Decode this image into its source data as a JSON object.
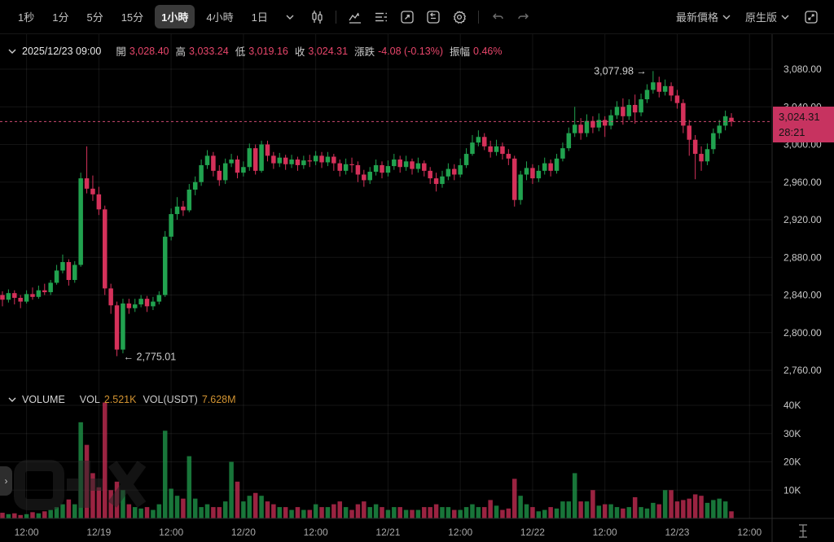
{
  "toolbar": {
    "timeframes": [
      {
        "label": "1秒",
        "active": false
      },
      {
        "label": "1分",
        "active": false
      },
      {
        "label": "5分",
        "active": false
      },
      {
        "label": "15分",
        "active": false
      },
      {
        "label": "1小時",
        "active": true
      },
      {
        "label": "4小時",
        "active": false
      },
      {
        "label": "1日",
        "active": false
      }
    ],
    "price_mode_label": "最新價格",
    "version_label": "原生版"
  },
  "ohlc_bar": {
    "timestamp": "2025/12/23 09:00",
    "open_label": "開",
    "open": "3,028.40",
    "high_label": "高",
    "high": "3,033.24",
    "low_label": "低",
    "low": "3,019.16",
    "close_label": "收",
    "close": "3,024.31",
    "change_label": "漲跌",
    "change": "-4.08 (-0.13%)",
    "amplitude_label": "振幅",
    "amplitude": "0.46%"
  },
  "volume_header": {
    "title": "VOLUME",
    "vol_label": "VOL",
    "vol": "2.521K",
    "vol_usdt_label": "VOL(USDT)",
    "vol_usdt": "7.628M"
  },
  "price_tag": {
    "price": "3,024.31",
    "countdown": "28:21"
  },
  "colors": {
    "up": "#21a24f",
    "down": "#d5315a",
    "badge": "#c73360",
    "dashed_line": "#cf4a72",
    "value_pink": "#e8466b",
    "amber": "#d29331",
    "grid": "rgba(255,255,255,0.08)",
    "axis_text": "#c9c9c9",
    "time_text": "#a8a8a8"
  },
  "chart_data": {
    "type": "candlestick+volume",
    "title": "",
    "price_axis": [
      {
        "label": "3,080.00",
        "v": 3080
      },
      {
        "label": "3,040.00",
        "v": 3040
      },
      {
        "label": "3,000.00",
        "v": 3000
      },
      {
        "label": "2,960.00",
        "v": 2960
      },
      {
        "label": "2,920.00",
        "v": 2920
      },
      {
        "label": "2,880.00",
        "v": 2880
      },
      {
        "label": "2,840.00",
        "v": 2840
      },
      {
        "label": "2,800.00",
        "v": 2800
      },
      {
        "label": "2,760.00",
        "v": 2760
      }
    ],
    "volume_axis": [
      {
        "label": "40K",
        "v": 40
      },
      {
        "label": "30K",
        "v": 30
      },
      {
        "label": "20K",
        "v": 20
      },
      {
        "label": "10K",
        "v": 10
      }
    ],
    "time_ticks": [
      {
        "label": "12:00",
        "i": 4
      },
      {
        "label": "12/19",
        "i": 16
      },
      {
        "label": "12:00",
        "i": 28
      },
      {
        "label": "12/20",
        "i": 40
      },
      {
        "label": "12:00",
        "i": 52
      },
      {
        "label": "12/21",
        "i": 64
      },
      {
        "label": "12:00",
        "i": 76
      },
      {
        "label": "12/22",
        "i": 88
      },
      {
        "label": "12:00",
        "i": 100
      },
      {
        "label": "12/23",
        "i": 112
      },
      {
        "label": "12:00",
        "i": 124
      }
    ],
    "last_price": 3024.31,
    "annotation_high": {
      "text": "3,077.98 →",
      "price": 3077.98,
      "index": 108
    },
    "annotation_low": {
      "text": "← 2,775.01",
      "price": 2775.01,
      "index": 19
    },
    "candles_format": [
      "open",
      "high",
      "low",
      "close",
      "volumeK"
    ],
    "candles": [
      [
        2840,
        2844,
        2828,
        2835,
        2.0
      ],
      [
        2835,
        2846,
        2832,
        2842,
        1.5
      ],
      [
        2842,
        2845,
        2830,
        2837,
        1.8
      ],
      [
        2837,
        2840,
        2826,
        2833,
        1.2
      ],
      [
        2833,
        2845,
        2831,
        2841,
        1.5
      ],
      [
        2841,
        2848,
        2835,
        2838,
        2.2
      ],
      [
        2838,
        2850,
        2836,
        2845,
        1.8
      ],
      [
        2845,
        2852,
        2840,
        2843,
        2.5
      ],
      [
        2843,
        2856,
        2840,
        2853,
        3.0
      ],
      [
        2853,
        2872,
        2851,
        2866,
        4.0
      ],
      [
        2866,
        2883,
        2863,
        2875,
        5.0
      ],
      [
        2875,
        2878,
        2850,
        2856,
        6.7
      ],
      [
        2856,
        2876,
        2853,
        2872,
        5.0
      ],
      [
        2872,
        2970,
        2870,
        2964,
        34
      ],
      [
        2964,
        2998,
        2948,
        2953,
        26
      ],
      [
        2953,
        2967,
        2940,
        2947,
        16
      ],
      [
        2947,
        2955,
        2925,
        2931,
        11
      ],
      [
        2931,
        2935,
        2840,
        2847,
        41
      ],
      [
        2847,
        2852,
        2820,
        2829,
        10
      ],
      [
        2829,
        2833,
        2775,
        2782,
        13
      ],
      [
        2782,
        2836,
        2778,
        2831,
        10
      ],
      [
        2831,
        2836,
        2820,
        2826,
        5
      ],
      [
        2826,
        2836,
        2822,
        2830,
        4
      ],
      [
        2830,
        2840,
        2827,
        2836,
        3.5
      ],
      [
        2836,
        2839,
        2822,
        2828,
        4
      ],
      [
        2828,
        2838,
        2824,
        2833,
        3
      ],
      [
        2833,
        2844,
        2830,
        2840,
        5
      ],
      [
        2840,
        2908,
        2838,
        2902,
        31
      ],
      [
        2902,
        2932,
        2898,
        2926,
        10.5
      ],
      [
        2926,
        2944,
        2920,
        2934,
        8
      ],
      [
        2934,
        2940,
        2924,
        2930,
        7
      ],
      [
        2930,
        2958,
        2928,
        2952,
        22
      ],
      [
        2952,
        2966,
        2946,
        2960,
        7
      ],
      [
        2960,
        2984,
        2956,
        2978,
        4
      ],
      [
        2978,
        2994,
        2974,
        2988,
        5
      ],
      [
        2988,
        2992,
        2966,
        2972,
        4
      ],
      [
        2972,
        2978,
        2956,
        2962,
        4
      ],
      [
        2962,
        2985,
        2958,
        2980,
        6
      ],
      [
        2980,
        2990,
        2976,
        2984,
        20
      ],
      [
        2984,
        2988,
        2964,
        2970,
        13
      ],
      [
        2970,
        2982,
        2966,
        2976,
        6
      ],
      [
        2976,
        3001,
        2972,
        2996,
        8
      ],
      [
        2996,
        3000,
        2968,
        2972,
        9
      ],
      [
        2972,
        3004,
        2970,
        3000,
        8
      ],
      [
        3000,
        3004,
        2982,
        2988,
        6
      ],
      [
        2988,
        2992,
        2974,
        2980,
        5
      ],
      [
        2980,
        2991,
        2976,
        2986,
        4
      ],
      [
        2986,
        2989,
        2973,
        2979,
        4
      ],
      [
        2979,
        2989,
        2975,
        2984,
        3
      ],
      [
        2984,
        2987,
        2972,
        2978,
        4
      ],
      [
        2978,
        2988,
        2974,
        2983,
        3
      ],
      [
        2983,
        2989,
        2976,
        2982,
        3
      ],
      [
        2982,
        2993,
        2978,
        2988,
        5
      ],
      [
        2988,
        2992,
        2975,
        2981,
        4
      ],
      [
        2981,
        2992,
        2977,
        2987,
        4
      ],
      [
        2987,
        2990,
        2972,
        2980,
        5
      ],
      [
        2980,
        2984,
        2966,
        2972,
        6
      ],
      [
        2972,
        2985,
        2968,
        2979,
        4
      ],
      [
        2979,
        2986,
        2970,
        2978,
        3
      ],
      [
        2978,
        2982,
        2960,
        2968,
        5
      ],
      [
        2968,
        2973,
        2955,
        2962,
        6
      ],
      [
        2962,
        2976,
        2958,
        2971,
        4
      ],
      [
        2971,
        2984,
        2967,
        2978,
        5
      ],
      [
        2978,
        2982,
        2964,
        2970,
        4
      ],
      [
        2970,
        2983,
        2966,
        2977,
        3
      ],
      [
        2977,
        2990,
        2973,
        2984,
        4
      ],
      [
        2984,
        2988,
        2970,
        2976,
        4
      ],
      [
        2976,
        2988,
        2972,
        2982,
        3
      ],
      [
        2982,
        2985,
        2968,
        2974,
        3
      ],
      [
        2974,
        2986,
        2970,
        2980,
        3
      ],
      [
        2980,
        2983,
        2966,
        2972,
        4
      ],
      [
        2972,
        2976,
        2958,
        2964,
        4
      ],
      [
        2964,
        2970,
        2950,
        2958,
        5
      ],
      [
        2958,
        2972,
        2954,
        2966,
        4
      ],
      [
        2966,
        2980,
        2962,
        2974,
        4
      ],
      [
        2974,
        2979,
        2962,
        2968,
        3
      ],
      [
        2968,
        2985,
        2965,
        2978,
        3
      ],
      [
        2978,
        2996,
        2975,
        2990,
        4
      ],
      [
        2990,
        3010,
        2988,
        3002,
        5
      ],
      [
        3002,
        3015,
        2998,
        3008,
        4
      ],
      [
        3008,
        3012,
        2994,
        2998,
        4
      ],
      [
        2998,
        3004,
        2986,
        2992,
        6.5
      ],
      [
        2992,
        3005,
        2988,
        2998,
        4.5
      ],
      [
        2998,
        3002,
        2984,
        2990,
        3
      ],
      [
        2990,
        2995,
        2978,
        2985,
        3.5
      ],
      [
        2985,
        2988,
        2934,
        2941,
        14
      ],
      [
        2941,
        2972,
        2936,
        2968,
        8
      ],
      [
        2968,
        2982,
        2962,
        2975,
        5
      ],
      [
        2975,
        2979,
        2958,
        2964,
        4
      ],
      [
        2964,
        2978,
        2960,
        2972,
        2.5
      ],
      [
        2972,
        2986,
        2968,
        2980,
        3
      ],
      [
        2980,
        2984,
        2966,
        2972,
        4
      ],
      [
        2972,
        2990,
        2969,
        2985,
        3.5
      ],
      [
        2985,
        3002,
        2982,
        2996,
        6
      ],
      [
        2996,
        3018,
        2993,
        3012,
        6
      ],
      [
        3012,
        3040,
        3008,
        3021,
        16
      ],
      [
        3021,
        3028,
        3005,
        3012,
        6
      ],
      [
        3012,
        3032,
        3008,
        3025,
        6
      ],
      [
        3025,
        3030,
        3012,
        3018,
        10
      ],
      [
        3018,
        3033,
        3014,
        3026,
        4.5
      ],
      [
        3026,
        3030,
        3008,
        3020,
        5
      ],
      [
        3020,
        3037,
        3016,
        3031,
        5
      ],
      [
        3031,
        3046,
        3027,
        3040,
        4
      ],
      [
        3040,
        3049,
        3021,
        3030,
        3.5
      ],
      [
        3030,
        3048,
        3026,
        3042,
        4
      ],
      [
        3042,
        3053,
        3022,
        3034,
        7.5
      ],
      [
        3034,
        3054,
        3030,
        3048,
        4
      ],
      [
        3048,
        3064,
        3044,
        3058,
        3.5
      ],
      [
        3058,
        3078,
        3054,
        3066,
        5.5
      ],
      [
        3066,
        3072,
        3050,
        3056,
        5
      ],
      [
        3056,
        3069,
        3052,
        3062,
        10
      ],
      [
        3062,
        3066,
        3046,
        3052,
        10
      ],
      [
        3052,
        3058,
        3038,
        3044,
        6
      ],
      [
        3044,
        3048,
        3012,
        3020,
        6.5
      ],
      [
        3020,
        3026,
        2988,
        3005,
        7
      ],
      [
        3005,
        3010,
        2963,
        2990,
        8.5
      ],
      [
        2990,
        2998,
        2972,
        2982,
        8
      ],
      [
        2982,
        3001,
        2978,
        2995,
        5.5
      ],
      [
        2995,
        3017,
        2990,
        3012,
        6.5
      ],
      [
        3012,
        3026,
        3006,
        3020,
        7
      ],
      [
        3020,
        3036,
        3015,
        3030,
        6
      ],
      [
        3028.4,
        3033.24,
        3019.16,
        3024.31,
        2.5
      ]
    ]
  }
}
